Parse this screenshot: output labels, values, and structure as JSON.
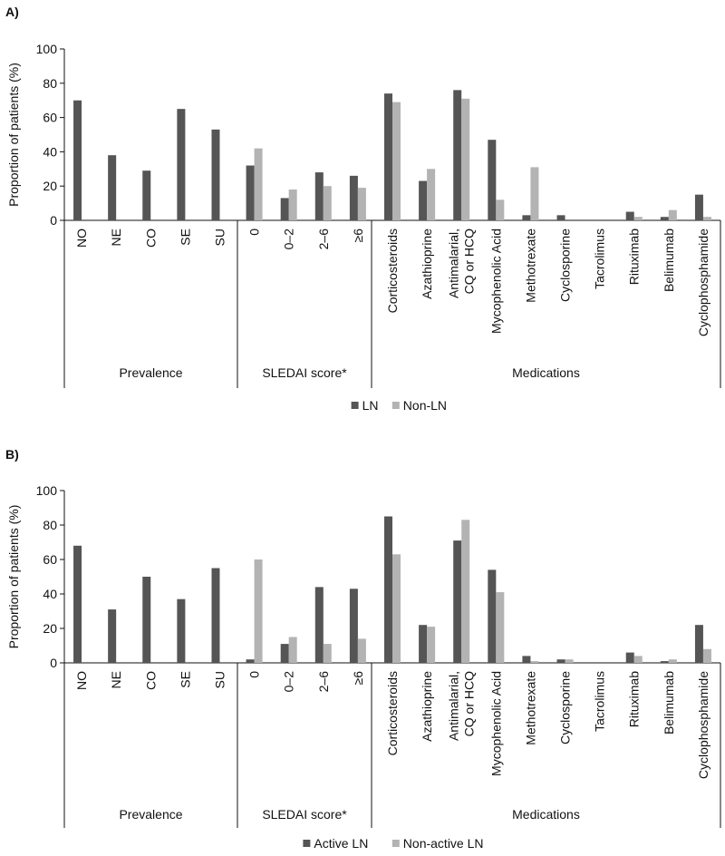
{
  "chart_data": [
    {
      "type": "bar",
      "panel_label": "A)",
      "ylabel": "Proportion of patients (%)",
      "ylim": [
        0,
        100
      ],
      "yticks": [
        "0",
        "20",
        "40",
        "60",
        "80",
        "100"
      ],
      "categories": [
        "NO",
        "NE",
        "CO",
        "SE",
        "SU",
        "0",
        "0–2",
        "2–6",
        "≥6",
        "Corticosteroids",
        "Azathioprine",
        "Antimalarial, CQ or HCQ",
        "Mycophenolic Acid",
        "Methotrexate",
        "Cyclosporine",
        "Tacrolimus",
        "Rituximab",
        "Belimumab",
        "Cyclophosphamide"
      ],
      "category_lines": [
        [
          "NO"
        ],
        [
          "NE"
        ],
        [
          "CO"
        ],
        [
          "SE"
        ],
        [
          "SU"
        ],
        [
          "0"
        ],
        [
          "0–2"
        ],
        [
          "2–6"
        ],
        [
          "≥6"
        ],
        [
          "Corticosteroids"
        ],
        [
          "Azathioprine"
        ],
        [
          "Antimalarial,",
          "CQ or HCQ"
        ],
        [
          "Mycophenolic Acid"
        ],
        [
          "Methotrexate"
        ],
        [
          "Cyclosporine"
        ],
        [
          "Tacrolimus"
        ],
        [
          "Rituximab"
        ],
        [
          "Belimumab"
        ],
        [
          "Cyclophosphamide"
        ]
      ],
      "groups": [
        {
          "label": "Prevalence",
          "count": 5
        },
        {
          "label": "SLEDAI score*",
          "count": 4
        },
        {
          "label": "Medications",
          "count": 10
        }
      ],
      "series": [
        {
          "name": "LN",
          "color": "#555555",
          "values": [
            70,
            38,
            29,
            65,
            53,
            32,
            13,
            28,
            26,
            74,
            23,
            76,
            47,
            3,
            3,
            0,
            5,
            2,
            15
          ]
        },
        {
          "name": "Non-LN",
          "color": "#b3b3b3",
          "values": [
            null,
            null,
            null,
            null,
            null,
            42,
            18,
            20,
            19,
            69,
            30,
            71,
            12,
            31,
            0,
            0,
            2,
            6,
            2
          ]
        }
      ],
      "legend_position": "bottom-center",
      "grid": false
    },
    {
      "type": "bar",
      "panel_label": "B)",
      "ylabel": "Proportion of patients (%)",
      "ylim": [
        0,
        100
      ],
      "yticks": [
        "0",
        "20",
        "40",
        "60",
        "80",
        "100"
      ],
      "categories": [
        "NO",
        "NE",
        "CO",
        "SE",
        "SU",
        "0",
        "0–2",
        "2–6",
        "≥6",
        "Corticosteroids",
        "Azathioprine",
        "Antimalarial, CQ or HCQ",
        "Mycophenolic Acid",
        "Methotrexate",
        "Cyclosporine",
        "Tacrolimus",
        "Rituximab",
        "Belimumab",
        "Cyclophosphamide"
      ],
      "category_lines": [
        [
          "NO"
        ],
        [
          "NE"
        ],
        [
          "CO"
        ],
        [
          "SE"
        ],
        [
          "SU"
        ],
        [
          "0"
        ],
        [
          "0–2"
        ],
        [
          "2–6"
        ],
        [
          "≥6"
        ],
        [
          "Corticosteroids"
        ],
        [
          "Azathioprine"
        ],
        [
          "Antimalarial,",
          "CQ or HCQ"
        ],
        [
          "Mycophenolic Acid"
        ],
        [
          "Methotrexate"
        ],
        [
          "Cyclosporine"
        ],
        [
          "Tacrolimus"
        ],
        [
          "Rituximab"
        ],
        [
          "Belimumab"
        ],
        [
          "Cyclophosphamide"
        ]
      ],
      "groups": [
        {
          "label": "Prevalence",
          "count": 5
        },
        {
          "label": "SLEDAI score*",
          "count": 4
        },
        {
          "label": "Medications",
          "count": 10
        }
      ],
      "series": [
        {
          "name": "Active LN",
          "color": "#555555",
          "values": [
            68,
            31,
            50,
            37,
            55,
            2,
            11,
            44,
            43,
            85,
            22,
            71,
            54,
            4,
            2,
            0,
            6,
            1,
            22
          ]
        },
        {
          "name": "Non-active LN",
          "color": "#b3b3b3",
          "values": [
            null,
            null,
            null,
            null,
            null,
            60,
            15,
            11,
            14,
            63,
            21,
            83,
            41,
            1,
            2,
            0,
            4,
            2,
            8
          ]
        }
      ],
      "legend_position": "bottom-center",
      "grid": false
    }
  ]
}
